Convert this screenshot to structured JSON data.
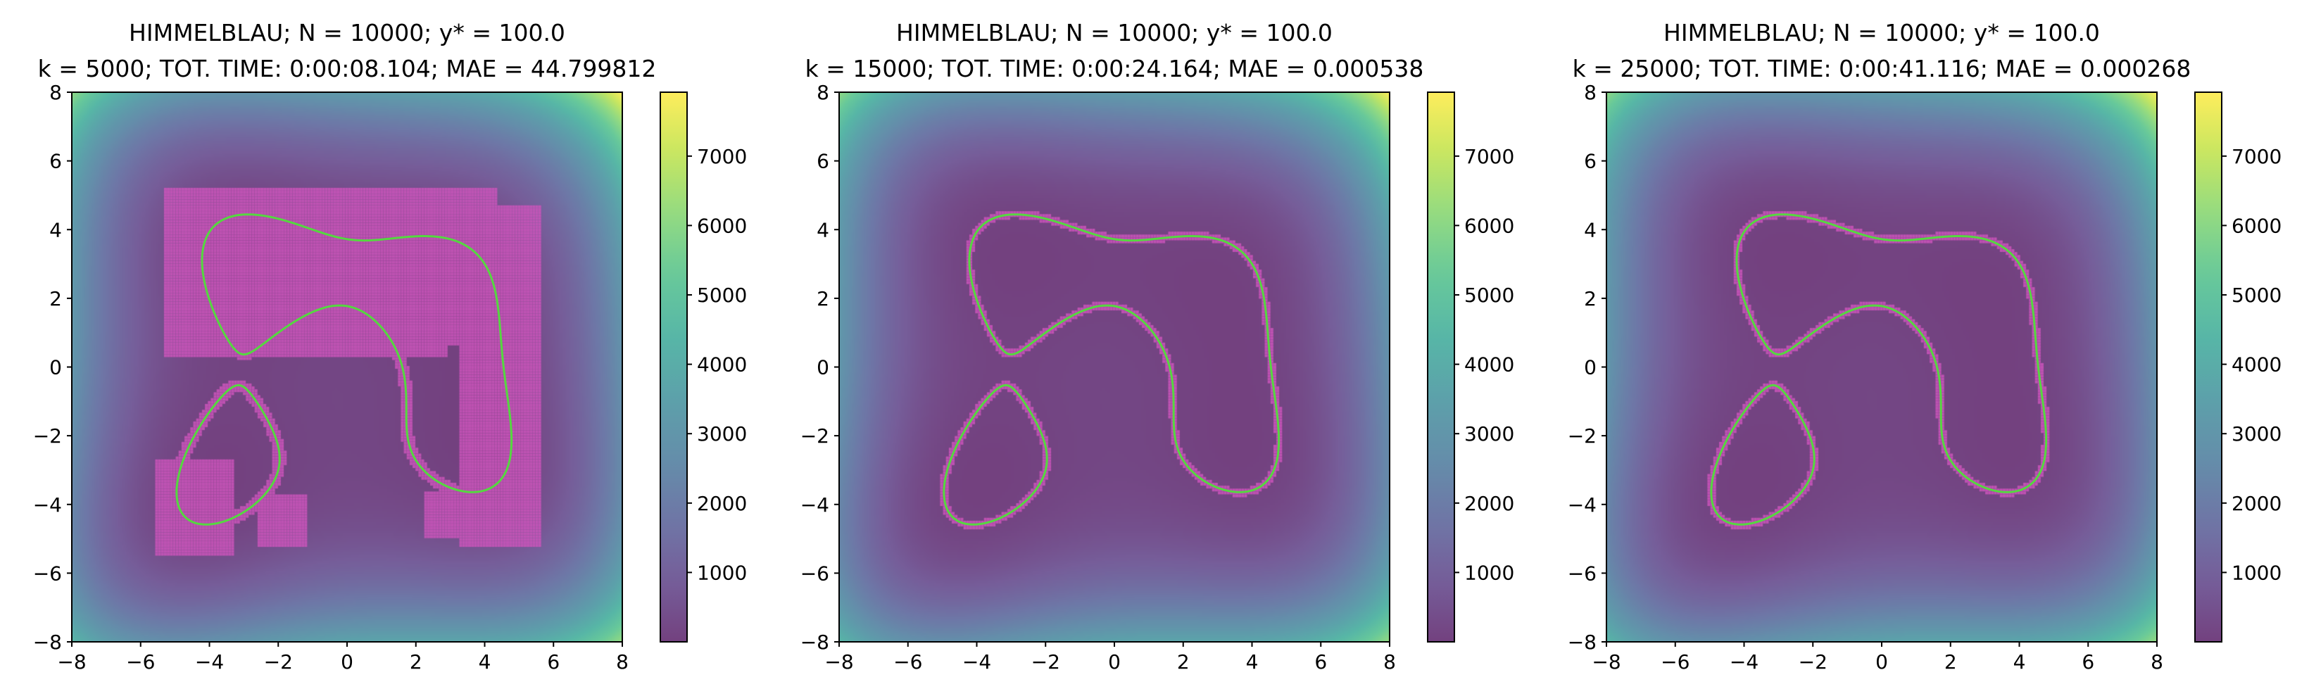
{
  "colors": {
    "colormap": [
      "#440154",
      "#482878",
      "#3e4989",
      "#31688e",
      "#26828e",
      "#1f9e89",
      "#35b779",
      "#6ece58",
      "#b5de2b",
      "#fde725"
    ],
    "colormap_alpha": 0.75,
    "level_curve": "#55d840",
    "samples": "#cc55bb"
  },
  "chart_data": [
    {
      "type": "heatmap",
      "function": "Himmelblau",
      "title_line1": "HIMMELBLAU; N = 10000; y* = 100.0",
      "title_line2": "k = 5000; TOT. TIME: 0:00:08.104; MAE = 44.799812",
      "xlim": [
        -8,
        8
      ],
      "ylim": [
        -8,
        8
      ],
      "xticks": [
        -8,
        -6,
        -4,
        -2,
        0,
        2,
        4,
        6,
        8
      ],
      "yticks": [
        -8,
        -6,
        -4,
        -2,
        0,
        2,
        4,
        6,
        8
      ],
      "level": 100.0,
      "colorbar": {
        "range": [
          0,
          7921
        ],
        "ticks": [
          1000,
          2000,
          3000,
          4000,
          5000,
          6000,
          7000
        ]
      },
      "sample_band_halfwidth": 0.18,
      "sample_patches": [
        [
          -5.3,
          2.9,
          0.3,
          5.2
        ],
        [
          -2.2,
          4.4,
          0.6,
          5.2
        ],
        [
          -5.3,
          3.3,
          2.0,
          5.0
        ],
        [
          3.3,
          5.6,
          -5.2,
          4.7
        ],
        [
          -5.6,
          -3.3,
          -5.5,
          -2.7
        ],
        [
          -2.6,
          -1.2,
          -5.2,
          -3.7
        ],
        [
          2.2,
          4.8,
          -5.0,
          -3.6
        ]
      ]
    },
    {
      "type": "heatmap",
      "function": "Himmelblau",
      "title_line1": "HIMMELBLAU; N = 10000; y* = 100.0",
      "title_line2": "k = 15000; TOT. TIME: 0:00:24.164; MAE = 0.000538",
      "xlim": [
        -8,
        8
      ],
      "ylim": [
        -8,
        8
      ],
      "xticks": [
        -8,
        -6,
        -4,
        -2,
        0,
        2,
        4,
        6,
        8
      ],
      "yticks": [
        -8,
        -6,
        -4,
        -2,
        0,
        2,
        4,
        6,
        8
      ],
      "level": 100.0,
      "colorbar": {
        "range": [
          0,
          7921
        ],
        "ticks": [
          1000,
          2000,
          3000,
          4000,
          5000,
          6000,
          7000
        ]
      },
      "sample_band_halfwidth": 0.12,
      "sample_patches": []
    },
    {
      "type": "heatmap",
      "function": "Himmelblau",
      "title_line1": "HIMMELBLAU; N = 10000; y* = 100.0",
      "title_line2": "k = 25000; TOT. TIME: 0:00:41.116; MAE = 0.000268",
      "xlim": [
        -8,
        8
      ],
      "ylim": [
        -8,
        8
      ],
      "xticks": [
        -8,
        -6,
        -4,
        -2,
        0,
        2,
        4,
        6,
        8
      ],
      "yticks": [
        -8,
        -6,
        -4,
        -2,
        0,
        2,
        4,
        6,
        8
      ],
      "level": 100.0,
      "colorbar": {
        "range": [
          0,
          7921
        ],
        "ticks": [
          1000,
          2000,
          3000,
          4000,
          5000,
          6000,
          7000
        ]
      },
      "sample_band_halfwidth": 0.12,
      "sample_patches": []
    }
  ]
}
